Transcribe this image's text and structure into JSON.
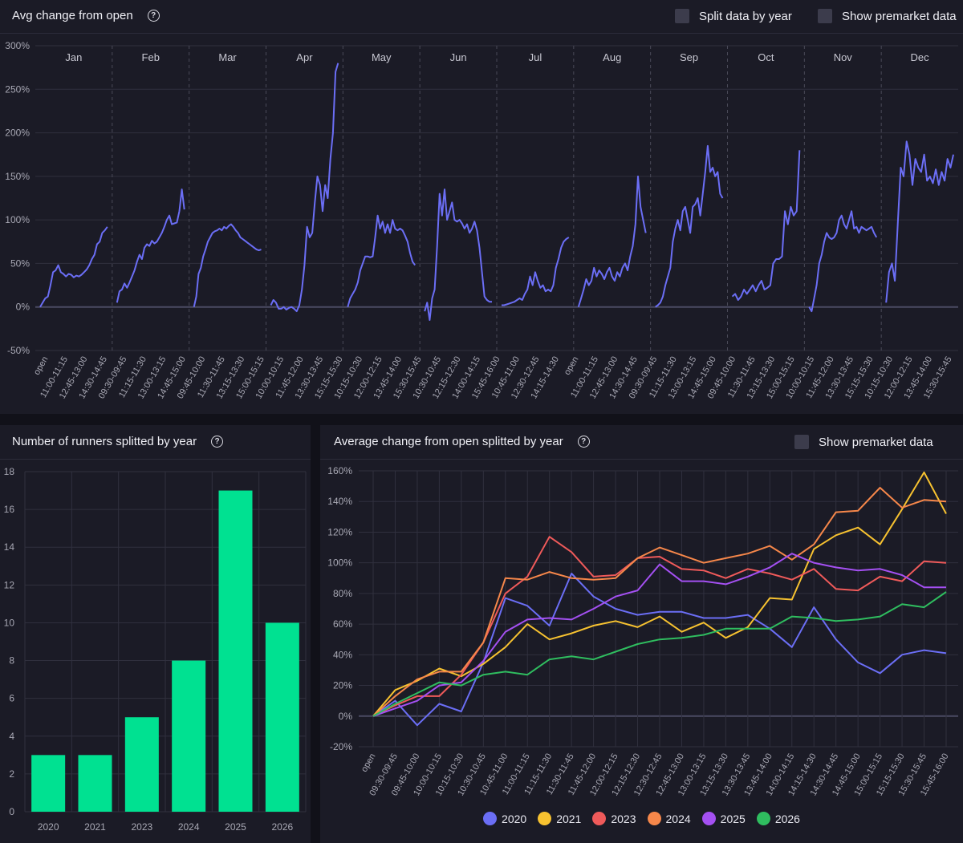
{
  "top": {
    "title": "Avg change from open",
    "split_label": "Split data by year",
    "premarket_label": "Show premarket data"
  },
  "bottom_left": {
    "title": "Number of runners splitted by year"
  },
  "bottom_right": {
    "title": "Average change from open splitted by year",
    "premarket_label": "Show premarket data"
  },
  "colors": {
    "line": "#6b6ef5",
    "bar": "#00e191",
    "2020": "#6b6ef5",
    "2021": "#f7c230",
    "2023": "#ef5a5a",
    "2024": "#f6874a",
    "2025": "#a450f2",
    "2026": "#2fbd5f"
  },
  "chart_data": [
    {
      "type": "line",
      "title": "Avg change from open",
      "ylim": [
        -50,
        300
      ],
      "yticks": [
        -50,
        0,
        50,
        100,
        150,
        200,
        250,
        300
      ],
      "months": [
        "Jan",
        "Feb",
        "Mar",
        "Apr",
        "May",
        "Jun",
        "Jul",
        "Aug",
        "Sep",
        "Oct",
        "Nov",
        "Dec"
      ],
      "xtick_labels": [
        "open",
        "11:00-11:15",
        "12:45-13:00",
        "14:30-14:45",
        "09:30-09:45",
        "11:15-11:30",
        "13:00-13:15",
        "14:45-15:00",
        "09:45-10:00",
        "11:30-11:45",
        "13:15-13:30",
        "15:00-15:15",
        "10:00-10:15",
        "11:45-12:00",
        "13:30-13:45",
        "15:15-15:30",
        "10:15-10:30",
        "12:00-12:15",
        "13:45-14:00",
        "15:30-15:45",
        "10:30-10:45",
        "12:15-12:30",
        "14:00-14:15",
        "15:45-16:00",
        "10:45-11:00",
        "12:30-12:45",
        "14:15-14:30",
        "open",
        "11:00-11:15",
        "12:45-13:00",
        "14:30-14:45",
        "09:30-09:45",
        "11:15-11:30",
        "13:00-13:15",
        "14:45-15:00",
        "09:45-10:00",
        "11:30-11:45",
        "13:15-13:30",
        "15:00-15:15",
        "10:00-10:15",
        "11:45-12:00",
        "13:30-13:45",
        "15:15-15:30",
        "10:15-10:30",
        "12:00-12:15",
        "13:45-14:00",
        "15:30-15:45"
      ],
      "series": [
        {
          "name": "Jan",
          "values": [
            0,
            5,
            10,
            12,
            25,
            40,
            42,
            48,
            40,
            38,
            35,
            38,
            37,
            34,
            36,
            35,
            37,
            40,
            43,
            48,
            55,
            60,
            72,
            75,
            85,
            88,
            92
          ]
        },
        {
          "name": "Feb",
          "values": [
            5,
            18,
            20,
            27,
            22,
            28,
            35,
            42,
            52,
            60,
            55,
            68,
            72,
            70,
            76,
            73,
            75,
            80,
            85,
            92,
            100,
            105,
            95,
            96,
            97,
            110,
            135,
            112
          ]
        },
        {
          "name": "Mar",
          "values": [
            0,
            12,
            38,
            45,
            58,
            66,
            75,
            80,
            85,
            87,
            88,
            90,
            88,
            92,
            90,
            93,
            95,
            92,
            88,
            85,
            80,
            78,
            76,
            74,
            72,
            70,
            68,
            66,
            65,
            66
          ]
        },
        {
          "name": "Apr",
          "values": [
            2,
            8,
            5,
            -2,
            -2,
            0,
            -3,
            -1,
            0,
            -2,
            -5,
            2,
            20,
            48,
            92,
            80,
            85,
            120,
            150,
            140,
            110,
            140,
            125,
            170,
            200,
            270,
            280
          ]
        },
        {
          "name": "May",
          "values": [
            0,
            10,
            15,
            20,
            28,
            42,
            50,
            58,
            58,
            57,
            58,
            80,
            105,
            90,
            98,
            85,
            95,
            85,
            100,
            90,
            88,
            90,
            88,
            82,
            75,
            62,
            52,
            48
          ]
        },
        {
          "name": "Jun",
          "values": [
            -5,
            5,
            -15,
            10,
            20,
            70,
            130,
            105,
            135,
            100,
            110,
            120,
            100,
            98,
            100,
            96,
            90,
            95,
            85,
            90,
            98,
            88,
            68,
            40,
            12,
            8,
            6,
            6
          ]
        },
        {
          "name": "Jul",
          "values": [
            2,
            2,
            3,
            4,
            5,
            6,
            8,
            10,
            8,
            15,
            20,
            35,
            25,
            40,
            30,
            22,
            25,
            18,
            20,
            18,
            25,
            45,
            55,
            68,
            75,
            78,
            80
          ]
        },
        {
          "name": "Aug",
          "values": [
            0,
            10,
            20,
            32,
            25,
            30,
            45,
            35,
            42,
            38,
            32,
            40,
            45,
            35,
            30,
            40,
            35,
            45,
            50,
            42,
            58,
            70,
            95,
            150,
            115,
            100,
            85
          ]
        },
        {
          "name": "Sep",
          "values": [
            0,
            2,
            5,
            12,
            25,
            35,
            45,
            75,
            90,
            100,
            88,
            110,
            115,
            100,
            85,
            115,
            118,
            125,
            105,
            130,
            155,
            185,
            155,
            160,
            150,
            155,
            130,
            125
          ]
        },
        {
          "name": "Oct",
          "values": [
            12,
            15,
            8,
            12,
            20,
            15,
            20,
            25,
            18,
            25,
            30,
            20,
            22,
            25,
            50,
            55,
            55,
            58,
            110,
            95,
            115,
            105,
            110,
            180
          ]
        },
        {
          "name": "Nov",
          "values": [
            0,
            -5,
            10,
            25,
            50,
            60,
            75,
            85,
            80,
            78,
            80,
            85,
            100,
            105,
            95,
            90,
            100,
            110,
            90,
            92,
            85,
            92,
            90,
            88,
            90,
            92,
            85,
            80
          ]
        },
        {
          "name": "Dec",
          "values": [
            5,
            40,
            50,
            30,
            95,
            160,
            150,
            190,
            175,
            140,
            170,
            160,
            155,
            175,
            145,
            150,
            142,
            158,
            140,
            155,
            145,
            170,
            160,
            175
          ]
        }
      ]
    },
    {
      "type": "bar",
      "title": "Number of runners splitted by year",
      "categories": [
        "2020",
        "2021",
        "2023",
        "2024",
        "2025",
        "2026"
      ],
      "values": [
        3,
        3,
        5,
        8,
        17,
        10
      ],
      "ylim": [
        0,
        18
      ],
      "yticks": [
        0,
        2,
        4,
        6,
        8,
        10,
        12,
        14,
        16,
        18
      ]
    },
    {
      "type": "line",
      "title": "Average change from open splitted by year",
      "ylim": [
        -20,
        160
      ],
      "yticks": [
        -20,
        0,
        20,
        40,
        60,
        80,
        100,
        120,
        140,
        160
      ],
      "x": [
        "open",
        "09:30-09:45",
        "09:45-10:00",
        "10:00-10:15",
        "10:15-10:30",
        "10:30-10:45",
        "10:45-11:00",
        "11:00-11:15",
        "11:15-11:30",
        "11:30-11:45",
        "11:45-12:00",
        "12:00-12:15",
        "12:15-12:30",
        "12:30-12:45",
        "12:45-13:00",
        "13:00-13:15",
        "13:15-13:30",
        "13:30-13:45",
        "13:45-14:00",
        "14:00-14:15",
        "14:15-14:30",
        "14:30-14:45",
        "14:45-15:00",
        "15:00-15:15",
        "15:15-15:30",
        "15:30-15:45",
        "15:45-16:00"
      ],
      "series": [
        {
          "name": "2020",
          "values": [
            0,
            10,
            -6,
            8,
            3,
            35,
            77,
            72,
            59,
            93,
            78,
            70,
            66,
            68,
            68,
            64,
            64,
            66,
            57,
            45,
            71,
            50,
            35,
            28,
            40,
            43,
            41
          ]
        },
        {
          "name": "2021",
          "values": [
            0,
            17,
            23,
            31,
            26,
            34,
            45,
            60,
            50,
            54,
            59,
            62,
            58,
            65,
            55,
            61,
            51,
            58,
            77,
            76,
            109,
            118,
            123,
            112,
            135,
            159,
            132
          ]
        },
        {
          "name": "2023",
          "values": [
            0,
            7,
            13,
            13,
            27,
            48,
            80,
            91,
            117,
            107,
            91,
            92,
            103,
            104,
            96,
            95,
            90,
            96,
            93,
            89,
            96,
            83,
            82,
            91,
            88,
            101,
            100
          ]
        },
        {
          "name": "2024",
          "values": [
            0,
            13,
            24,
            29,
            29,
            48,
            90,
            89,
            94,
            90,
            89,
            90,
            103,
            110,
            105,
            100,
            103,
            106,
            111,
            102,
            112,
            133,
            134,
            149,
            136,
            141,
            140
          ]
        },
        {
          "name": "2025",
          "values": [
            0,
            5,
            10,
            20,
            22,
            36,
            55,
            63,
            64,
            63,
            70,
            78,
            82,
            99,
            88,
            88,
            86,
            91,
            97,
            106,
            100,
            97,
            95,
            96,
            92,
            84,
            84
          ]
        },
        {
          "name": "2026",
          "values": [
            0,
            8,
            15,
            22,
            20,
            27,
            29,
            27,
            37,
            39,
            37,
            42,
            47,
            50,
            51,
            53,
            57,
            57,
            57,
            65,
            64,
            62,
            63,
            65,
            73,
            71,
            81
          ]
        }
      ]
    }
  ]
}
